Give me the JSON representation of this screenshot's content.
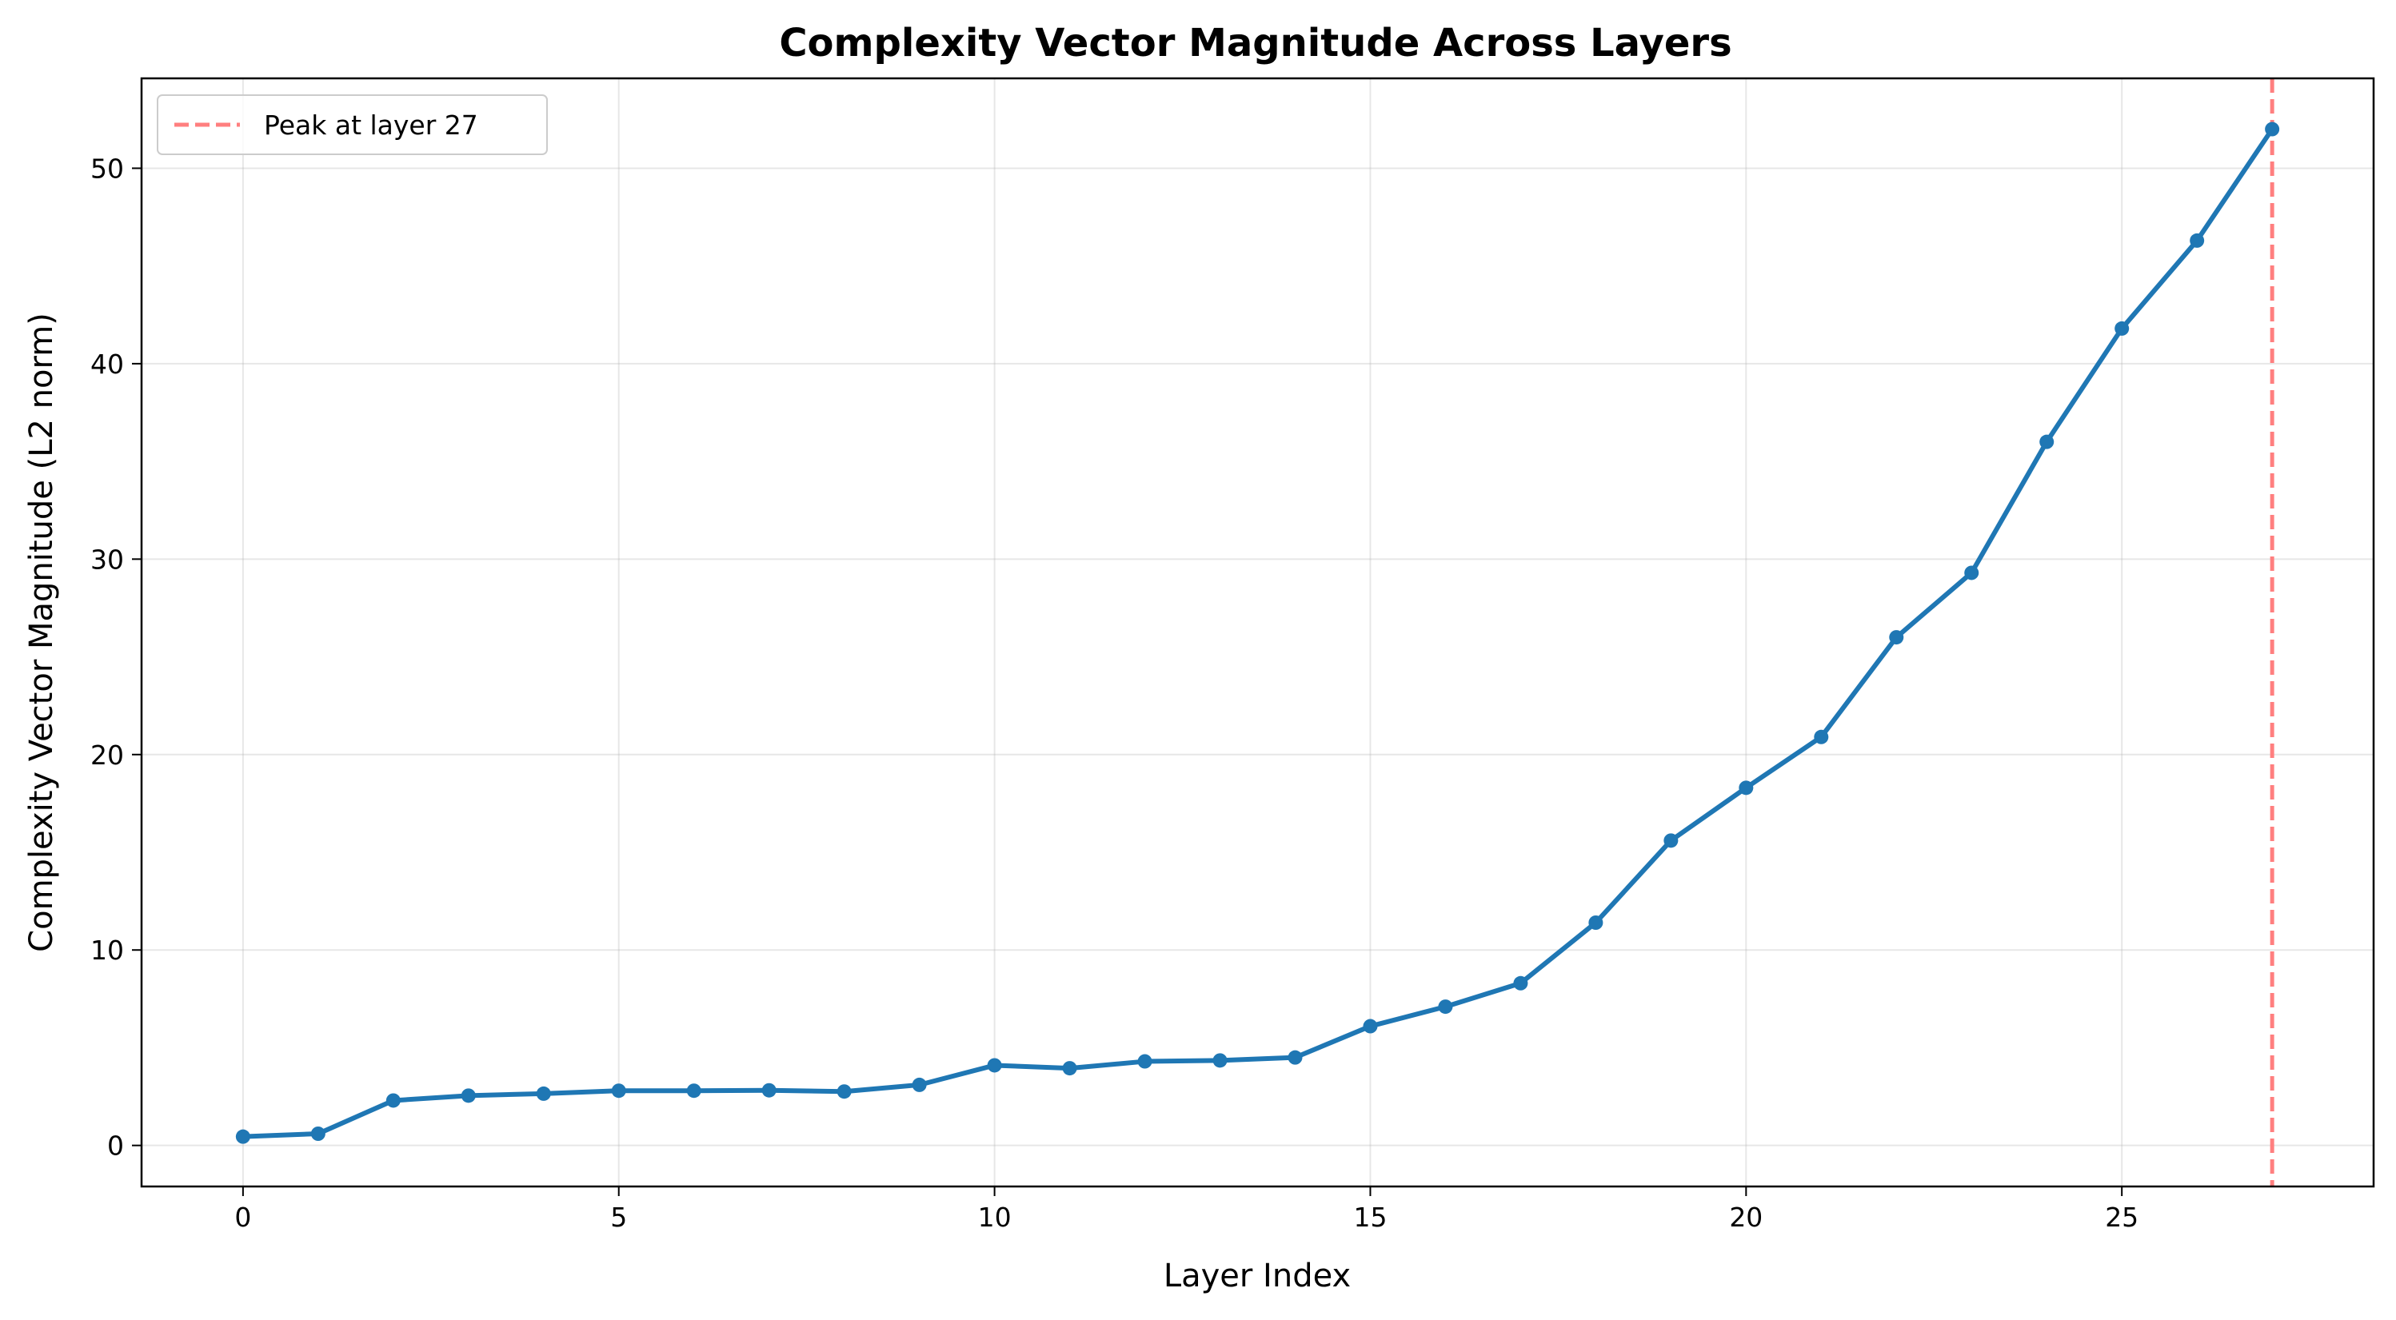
{
  "chart_data": {
    "type": "line",
    "title": "Complexity Vector Magnitude Across Layers",
    "xlabel": "Layer Index",
    "ylabel": "Complexity Vector Magnitude (L2 norm)",
    "xlim": [
      -1.35,
      28.35
    ],
    "ylim": [
      -2.1,
      54.6
    ],
    "xticks": [
      0,
      5,
      10,
      15,
      20,
      25
    ],
    "yticks": [
      0,
      10,
      20,
      30,
      40,
      50
    ],
    "grid": true,
    "legend_position": "top-left",
    "series": [
      {
        "x": [
          0,
          1,
          2,
          3,
          4,
          5,
          6,
          7,
          8,
          9,
          10,
          11,
          12,
          13,
          14,
          15,
          16,
          17,
          18,
          19,
          20,
          21,
          22,
          23,
          24,
          25,
          26,
          27
        ],
        "values": [
          0.45,
          0.6,
          2.3,
          2.55,
          2.65,
          2.8,
          2.8,
          2.82,
          2.76,
          3.1,
          4.1,
          3.95,
          4.3,
          4.35,
          4.5,
          6.1,
          7.1,
          8.3,
          11.4,
          15.6,
          18.3,
          20.9,
          26.0,
          29.3,
          36.0,
          41.8,
          46.3,
          52.0
        ],
        "color": "#1f77b4"
      }
    ],
    "reference_lines": [
      {
        "orientation": "vertical",
        "x": 27,
        "label": "Peak at layer 27",
        "color": "#ff7f7f",
        "style": "dashed"
      }
    ]
  }
}
